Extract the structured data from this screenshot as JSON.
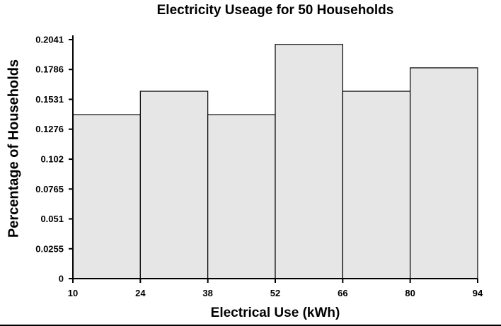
{
  "chart_data": {
    "type": "bar",
    "subtype": "histogram",
    "title": "Electricity Useage for 50 Households",
    "xlabel": "Electrical Use (kWh)",
    "ylabel": "Percentage of Households",
    "bin_edges": [
      10,
      24,
      38,
      52,
      66,
      80,
      94
    ],
    "x_ticks": [
      "10",
      "24",
      "38",
      "52",
      "66",
      "80",
      "94"
    ],
    "values": [
      0.14,
      0.16,
      0.14,
      0.2,
      0.16,
      0.18
    ],
    "y_ticks": [
      "0",
      "0.0255",
      "0.051",
      "0.0765",
      "0.102",
      "0.1276",
      "0.1531",
      "0.1786",
      "0.2041"
    ],
    "y_tick_values": [
      0,
      0.0255,
      0.051,
      0.0765,
      0.102,
      0.1276,
      0.1531,
      0.1786,
      0.2041
    ],
    "ylim": [
      0,
      0.2041
    ],
    "xlim": [
      10,
      94
    ],
    "grid": false,
    "bar_fill": "#e6e6e6",
    "bar_edge": "#000000"
  }
}
